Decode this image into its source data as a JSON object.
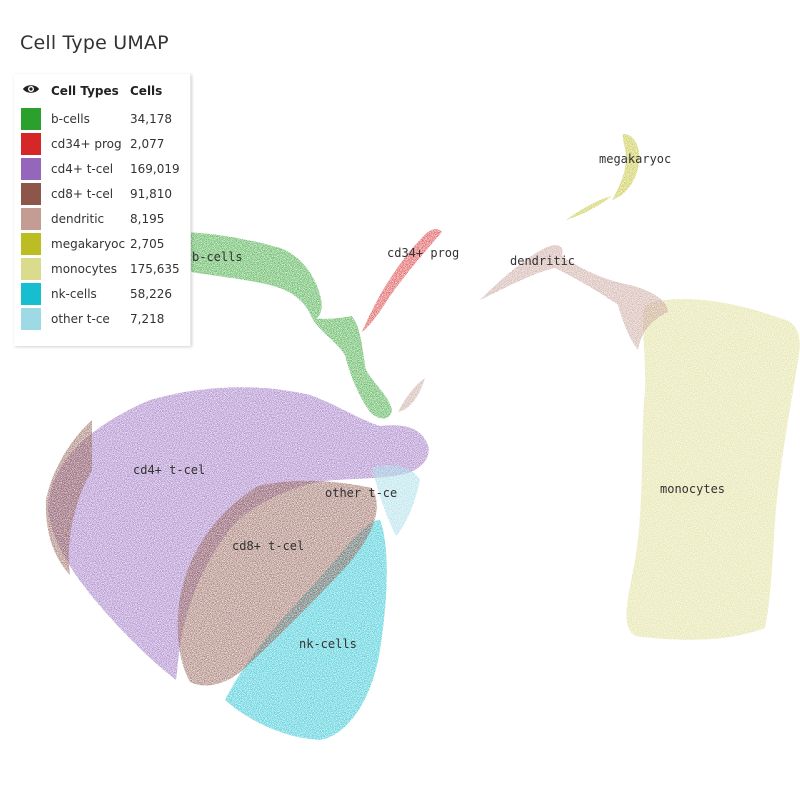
{
  "title": "Cell Type UMAP",
  "legend": {
    "eye_icon": "eye-icon",
    "col_types": "Cell Types",
    "col_cells": "Cells",
    "rows": [
      {
        "label": "b-cells",
        "count": "34,178",
        "color": "#2ca02c"
      },
      {
        "label": "cd34+ prog",
        "count": "2,077",
        "color": "#d62728"
      },
      {
        "label": "cd4+ t-cel",
        "count": "169,019",
        "color": "#9467bd"
      },
      {
        "label": "cd8+ t-cel",
        "count": "91,810",
        "color": "#8c564b"
      },
      {
        "label": "dendritic",
        "count": "8,195",
        "color": "#c49c94"
      },
      {
        "label": "megakaryoc",
        "count": "2,705",
        "color": "#bcbd22"
      },
      {
        "label": "monocytes",
        "count": "175,635",
        "color": "#dbdb8d"
      },
      {
        "label": "nk-cells",
        "count": "58,226",
        "color": "#17becf"
      },
      {
        "label": "other t-ce",
        "count": "7,218",
        "color": "#9edae5"
      }
    ]
  },
  "chart_data": {
    "type": "scatter",
    "title": "Cell Type UMAP",
    "xlabel": "",
    "ylabel": "",
    "grid": false,
    "legend_position": "top-left",
    "series": [
      {
        "name": "b-cells",
        "count": 34178,
        "color": "#2ca02c",
        "cluster_label": "b-cells"
      },
      {
        "name": "cd34+ prog",
        "count": 2077,
        "color": "#d62728",
        "cluster_label": "cd34+ prog"
      },
      {
        "name": "cd4+ t-cel",
        "count": 169019,
        "color": "#9467bd",
        "cluster_label": "cd4+ t-cel"
      },
      {
        "name": "cd8+ t-cel",
        "count": 91810,
        "color": "#8c564b",
        "cluster_label": "cd8+ t-cel"
      },
      {
        "name": "dendritic",
        "count": 8195,
        "color": "#c49c94",
        "cluster_label": "dendritic"
      },
      {
        "name": "megakaryoc",
        "count": 2705,
        "color": "#bcbd22",
        "cluster_label": "megakaryoc"
      },
      {
        "name": "monocytes",
        "count": 175635,
        "color": "#dbdb8d",
        "cluster_label": "monocytes"
      },
      {
        "name": "nk-cells",
        "count": 58226,
        "color": "#17becf",
        "cluster_label": "nk-cells"
      },
      {
        "name": "other t-ce",
        "count": 7218,
        "color": "#9edae5",
        "cluster_label": "other t-ce"
      }
    ]
  }
}
